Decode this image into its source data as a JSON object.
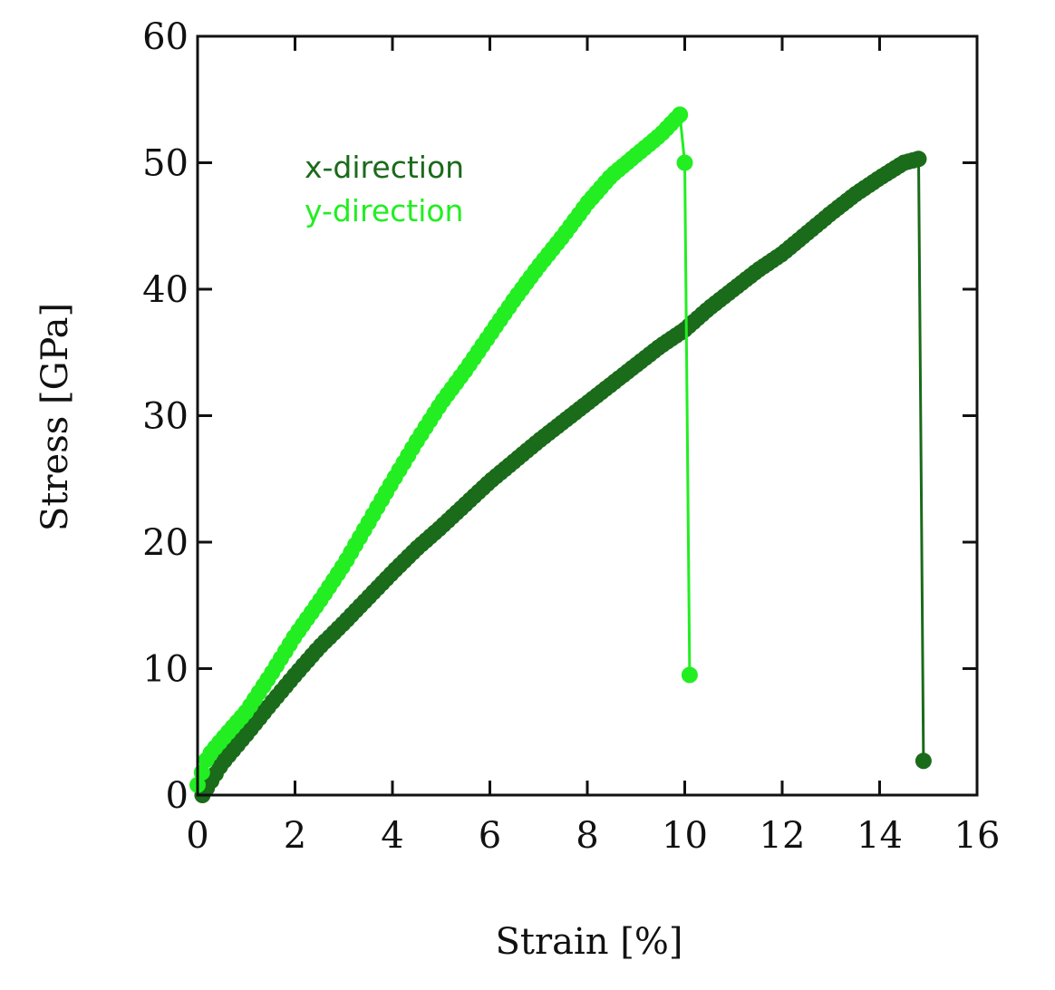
{
  "chart_data": {
    "type": "line",
    "title": "",
    "xlabel": "Strain [%]",
    "ylabel": "Stress [GPa]",
    "xlim": [
      0,
      16
    ],
    "ylim": [
      0,
      60
    ],
    "xticks": [
      "0",
      "2",
      "4",
      "6",
      "8",
      "10",
      "12",
      "14",
      "16"
    ],
    "yticks": [
      "0",
      "10",
      "20",
      "30",
      "40",
      "50",
      "60"
    ],
    "grid": false,
    "legend_position": "top-left",
    "series": [
      {
        "name": "x-direction",
        "color": "#1a6b1a",
        "x": [
          0.1,
          0.5,
          1,
          1.5,
          2,
          2.5,
          3,
          3.5,
          4,
          4.5,
          5,
          5.5,
          6,
          6.5,
          7,
          7.5,
          8,
          8.5,
          9,
          9.5,
          10,
          10.5,
          11,
          11.5,
          12,
          12.5,
          13,
          13.5,
          14,
          14.5,
          14.8,
          14.9
        ],
        "y": [
          0,
          2.5,
          4.8,
          7.2,
          9.5,
          11.7,
          13.6,
          15.6,
          17.6,
          19.5,
          21.2,
          23,
          24.8,
          26.4,
          28,
          29.5,
          31,
          32.5,
          34,
          35.5,
          36.8,
          38.5,
          40,
          41.5,
          42.8,
          44.4,
          46,
          47.5,
          48.8,
          50,
          50.3,
          2.7
        ]
      },
      {
        "name": "y-direction",
        "color": "#22ee22",
        "x": [
          0,
          0.2,
          0.5,
          1,
          1.5,
          2,
          2.5,
          3,
          3.5,
          4,
          4.5,
          5,
          5.5,
          6,
          6.5,
          7,
          7.5,
          8,
          8.5,
          9,
          9.5,
          9.9,
          10,
          10.1
        ],
        "y": [
          0.8,
          3,
          4.4,
          6.6,
          9.5,
          12.6,
          15.3,
          18.2,
          21.5,
          24.8,
          28,
          31,
          33.6,
          36.4,
          39.2,
          41.8,
          44.2,
          46.8,
          49,
          50.6,
          52.2,
          53.8,
          50,
          9.5
        ]
      }
    ]
  }
}
